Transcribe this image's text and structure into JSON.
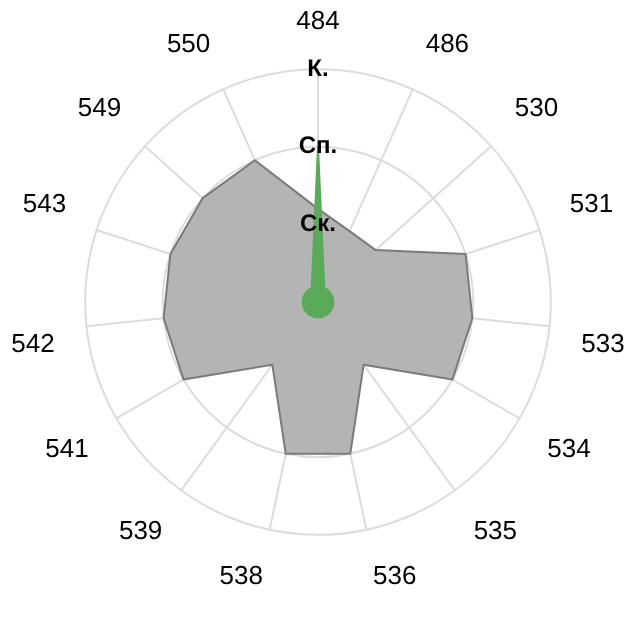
{
  "chart_data": {
    "type": "radar",
    "categories": [
      "484",
      "486",
      "530",
      "531",
      "533",
      "534",
      "535",
      "536",
      "538",
      "539",
      "541",
      "542",
      "543",
      "549",
      "550"
    ],
    "ylim": [
      0,
      3
    ],
    "yticks": [
      {
        "value": 1,
        "label": "Ск."
      },
      {
        "value": 2,
        "label": "Сп."
      },
      {
        "value": 3,
        "label": "К."
      }
    ],
    "grid": true,
    "legend": false,
    "marker": "none",
    "series": [
      {
        "color": "#b4b4b4",
        "values": [
          1.2,
          1,
          1,
          2,
          2,
          2,
          1,
          2,
          2,
          1,
          2,
          2,
          2,
          2,
          2
        ]
      },
      {
        "color": "#5aaa5a",
        "values": [
          2,
          0.2,
          0.2,
          0.2,
          0.2,
          0.2,
          0.2,
          0.2,
          0.2,
          0.2,
          0.2,
          0.2,
          0.2,
          0.2,
          0.2
        ]
      }
    ]
  }
}
